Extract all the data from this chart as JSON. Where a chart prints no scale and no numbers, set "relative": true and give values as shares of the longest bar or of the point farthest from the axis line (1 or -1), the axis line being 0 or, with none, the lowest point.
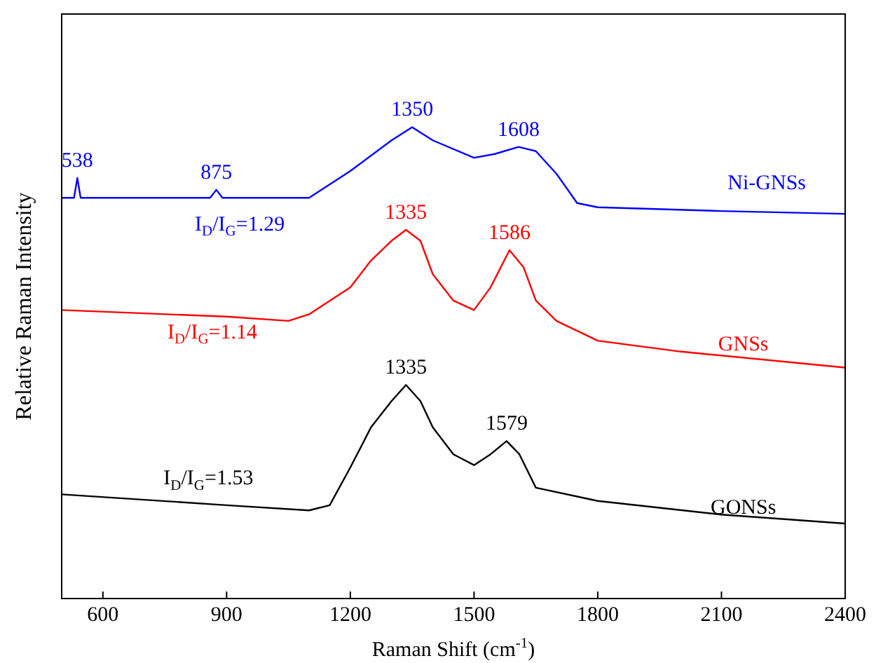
{
  "chart_data": {
    "type": "line",
    "relative": true,
    "xlabel": "Raman Shift (cm$^{-1}$)",
    "ylabel": "Relative Raman Intensity",
    "xlim": [
      500,
      2400
    ],
    "xticks": [
      600,
      900,
      1200,
      1500,
      1800,
      2100,
      2400
    ],
    "grid": false,
    "legend": false,
    "marker": "none",
    "line_style": "solid",
    "series": [
      {
        "name": "Ni-GNSs",
        "color": "#0000ff",
        "x": [
          500,
          530,
          538,
          546,
          600,
          700,
          860,
          875,
          890,
          1000,
          1100,
          1200,
          1300,
          1350,
          1400,
          1500,
          1550,
          1608,
          1650,
          1700,
          1750,
          1800,
          2100,
          2400
        ],
        "values": [
          0.85,
          0.85,
          0.892,
          0.85,
          0.85,
          0.85,
          0.85,
          0.867,
          0.85,
          0.85,
          0.85,
          0.907,
          0.972,
          1,
          0.972,
          0.935,
          0.943,
          0.958,
          0.949,
          0.901,
          0.839,
          0.83,
          0.822,
          0.816
        ]
      },
      {
        "name": "GNSs",
        "color": "#ff0000",
        "x": [
          500,
          900,
          1050,
          1100,
          1200,
          1250,
          1300,
          1335,
          1370,
          1400,
          1450,
          1500,
          1540,
          1586,
          1620,
          1650,
          1700,
          1800,
          2000,
          2400
        ],
        "values": [
          0.612,
          0.598,
          0.589,
          0.603,
          0.66,
          0.717,
          0.759,
          0.782,
          0.759,
          0.688,
          0.632,
          0.612,
          0.66,
          0.739,
          0.703,
          0.632,
          0.589,
          0.547,
          0.524,
          0.49
        ]
      },
      {
        "name": "GONSs",
        "color": "#000000",
        "x": [
          500,
          900,
          1100,
          1150,
          1200,
          1250,
          1300,
          1335,
          1370,
          1400,
          1450,
          1500,
          1540,
          1579,
          1610,
          1650,
          1800,
          2100,
          2400
        ],
        "values": [
          0.221,
          0.198,
          0.187,
          0.198,
          0.278,
          0.363,
          0.419,
          0.453,
          0.419,
          0.363,
          0.306,
          0.283,
          0.306,
          0.334,
          0.306,
          0.235,
          0.207,
          0.178,
          0.159
        ]
      }
    ],
    "annotations": [
      {
        "text": "538",
        "x": 538,
        "y": 0.892
      },
      {
        "text": "875",
        "x": 875,
        "y": 0.867
      },
      {
        "text": "1350",
        "x": 1350,
        "y": 1
      },
      {
        "text": "1608",
        "x": 1608,
        "y": 0.958
      },
      {
        "text": "1335",
        "x": 1335,
        "y": 0.782
      },
      {
        "text": "1586",
        "x": 1586,
        "y": 0.739
      },
      {
        "text": "1335",
        "x": 1335,
        "y": 0.453
      },
      {
        "text": "1579",
        "x": 1579,
        "y": 0.334
      },
      "I$_{D}$/I$_{G}$=1.29",
      "I$_{D}$/I$_{G}$=1.14",
      "I$_{D}$/I$_{G}$=1.53"
    ]
  }
}
